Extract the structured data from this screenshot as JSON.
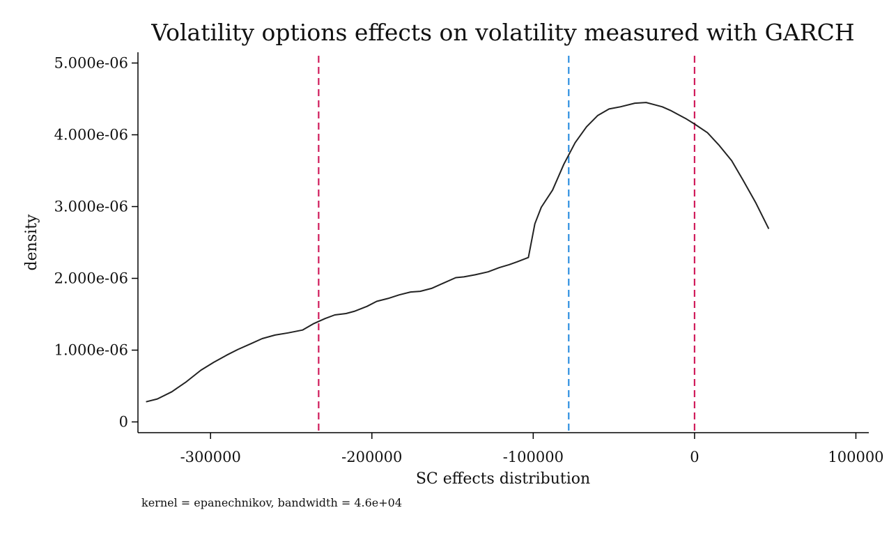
{
  "chart_data": {
    "type": "line",
    "title": "Volatility options effects on volatility measured with GARCH",
    "xlabel": "SC effects distribution",
    "ylabel": "density",
    "note": "kernel = epanechnikov, bandwidth =  4.6e+04",
    "xlim": [
      -345000,
      108000
    ],
    "ylim": [
      -150000000,
      5150000000
    ],
    "x_ticks": [
      {
        "value": -300000,
        "label": "-300000"
      },
      {
        "value": -200000,
        "label": "-200000"
      },
      {
        "value": -100000,
        "label": "-100000"
      },
      {
        "value": 0,
        "label": "0"
      },
      {
        "value": 100000,
        "label": "100000"
      }
    ],
    "y_ticks": [
      {
        "value": 0,
        "label": "0"
      },
      {
        "value": 1000000000,
        "label": "1.000e-06"
      },
      {
        "value": 2000000000,
        "label": "2.000e-06"
      },
      {
        "value": 3000000000,
        "label": "3.000e-06"
      },
      {
        "value": 4000000000,
        "label": "4.000e-06"
      },
      {
        "value": 5000000000,
        "label": "5.000e-06"
      }
    ],
    "y_scale_note": "y values stored as density × 1e15",
    "grid": false,
    "series": [
      {
        "color": "#222222",
        "x": [
          -340000,
          -333000,
          -324000,
          -315000,
          -306000,
          -298000,
          -290000,
          -283000,
          -275000,
          -268000,
          -260000,
          -252000,
          -243000,
          -236000,
          -229000,
          -223000,
          -216000,
          -211000,
          -203000,
          -197000,
          -190000,
          -183000,
          -176000,
          -170000,
          -163000,
          -156000,
          -148000,
          -143000,
          -136000,
          -128000,
          -121000,
          -115000,
          -110000,
          -103000,
          -99000,
          -95000,
          -88000,
          -81000,
          -74000,
          -67000,
          -60000,
          -53000,
          -46000,
          -37000,
          -30000,
          -25000,
          -20000,
          -15000,
          -10000,
          -5000,
          0,
          8000,
          15000,
          23000,
          30000,
          38000,
          46000
        ],
        "y": [
          280000000,
          320000000,
          420000000,
          560000000,
          720000000,
          830000000,
          930000000,
          1010000000,
          1090000000,
          1160000000,
          1210000000,
          1240000000,
          1280000000,
          1370000000,
          1440000000,
          1490000000,
          1510000000,
          1540000000,
          1610000000,
          1680000000,
          1720000000,
          1770000000,
          1810000000,
          1820000000,
          1860000000,
          1930000000,
          2010000000,
          2020000000,
          2050000000,
          2090000000,
          2150000000,
          2190000000,
          2230000000,
          2290000000,
          2760000000,
          2990000000,
          3230000000,
          3590000000,
          3890000000,
          4110000000,
          4270000000,
          4360000000,
          4390000000,
          4440000000,
          4450000000,
          4420000000,
          4390000000,
          4340000000,
          4280000000,
          4220000000,
          4150000000,
          4030000000,
          3860000000,
          3640000000,
          3370000000,
          3050000000,
          2690000000
        ]
      }
    ],
    "reference_lines": [
      {
        "x": -233000,
        "color": "#d01c5b",
        "style": "dashed"
      },
      {
        "x": -78000,
        "color": "#2e8fe0",
        "style": "dashed"
      },
      {
        "x": 0,
        "color": "#d01c5b",
        "style": "dashed"
      }
    ]
  }
}
